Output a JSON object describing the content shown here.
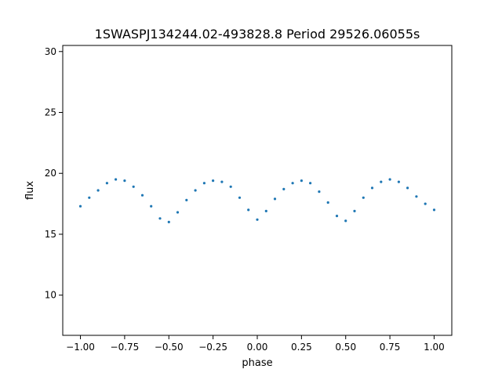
{
  "chart_data": {
    "type": "scatter",
    "title": "1SWASPJ134244.02-493828.8 Period 29526.06055s",
    "xlabel": "phase",
    "ylabel": "flux",
    "xlim": [
      -1.1,
      1.1
    ],
    "ylim": [
      6.7,
      30.5
    ],
    "xticks": [
      -1.0,
      -0.75,
      -0.5,
      -0.25,
      0.0,
      0.25,
      0.5,
      0.75,
      1.0
    ],
    "xtick_labels": [
      "−1.00",
      "−0.75",
      "−0.50",
      "−0.25",
      "0.00",
      "0.25",
      "0.50",
      "0.75",
      "1.00"
    ],
    "yticks": [
      10,
      15,
      20,
      25,
      30
    ],
    "ytick_labels": [
      "10",
      "15",
      "20",
      "25",
      "30"
    ],
    "grid": false,
    "point_color": "#1f77b4",
    "series": [
      {
        "x": [
          -1.0,
          -0.95,
          -0.9,
          -0.85,
          -0.8,
          -0.75,
          -0.7,
          -0.65,
          -0.6,
          -0.55,
          -0.5,
          -0.45,
          -0.4,
          -0.35,
          -0.3,
          -0.25,
          -0.2,
          -0.15,
          -0.1,
          -0.05,
          0.0,
          0.05,
          0.1,
          0.15,
          0.2,
          0.25,
          0.3,
          0.35,
          0.4,
          0.45,
          0.5,
          0.55,
          0.6,
          0.65,
          0.7,
          0.75,
          0.8,
          0.85,
          0.9,
          0.95,
          1.0
        ],
        "y": [
          17.3,
          18.0,
          18.6,
          19.2,
          19.5,
          19.4,
          18.9,
          18.2,
          17.3,
          16.3,
          16.0,
          16.8,
          17.8,
          18.6,
          19.2,
          19.4,
          19.3,
          18.9,
          18.0,
          17.0,
          16.2,
          16.9,
          17.9,
          18.7,
          19.2,
          19.4,
          19.2,
          18.5,
          17.6,
          16.5,
          16.1,
          16.9,
          18.0,
          18.8,
          19.3,
          19.5,
          19.3,
          18.8,
          18.1,
          17.5,
          17.0
        ]
      }
    ]
  }
}
